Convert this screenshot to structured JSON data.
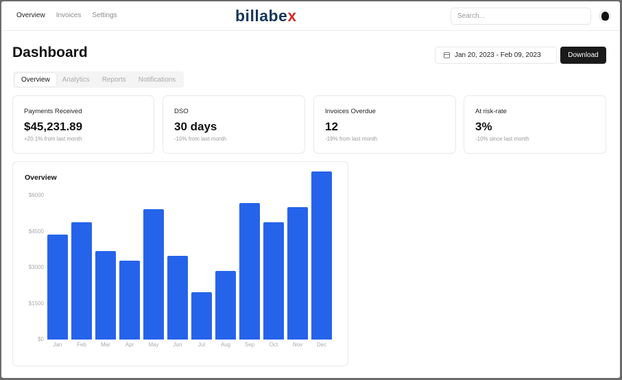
{
  "topnav": {
    "links": [
      "Overview",
      "Invoices",
      "Settings"
    ],
    "active_link": "Overview",
    "logo_main": "billabe",
    "logo_accent": "x",
    "search_placeholder": "Search..."
  },
  "header": {
    "title": "Dashboard",
    "date_range": "Jan 20, 2023 - Feb 09, 2023",
    "download_label": "Download"
  },
  "tabs": [
    "Overview",
    "Analytics",
    "Reports",
    "Notifications"
  ],
  "cards": [
    {
      "label": "Payments Received",
      "value": "$45,231.89",
      "sub": "+20.1% from last month"
    },
    {
      "label": "DSO",
      "value": "30 days",
      "sub": "-10% from last month"
    },
    {
      "label": "Invoices Overdue",
      "value": "12",
      "sub": "-19% from last month"
    },
    {
      "label": "At risk-rate",
      "value": "3%",
      "sub": "-10% since last month"
    }
  ],
  "chart_data": {
    "type": "bar",
    "title": "Overview",
    "xlabel": "",
    "ylabel": "",
    "categories": [
      "Jan",
      "Feb",
      "Mar",
      "Apr",
      "May",
      "Jun",
      "Jul",
      "Aug",
      "Sep",
      "Oct",
      "Nov",
      "Dec"
    ],
    "values": [
      4370,
      4890,
      3680,
      3300,
      5420,
      3500,
      1980,
      2870,
      5680,
      4890,
      5510,
      7000
    ],
    "yticks": [
      "$0",
      "$1500",
      "$3000",
      "$4500",
      "$6000"
    ],
    "ylim": [
      0,
      6000
    ],
    "grid": false,
    "bar_color": "#2563eb"
  }
}
